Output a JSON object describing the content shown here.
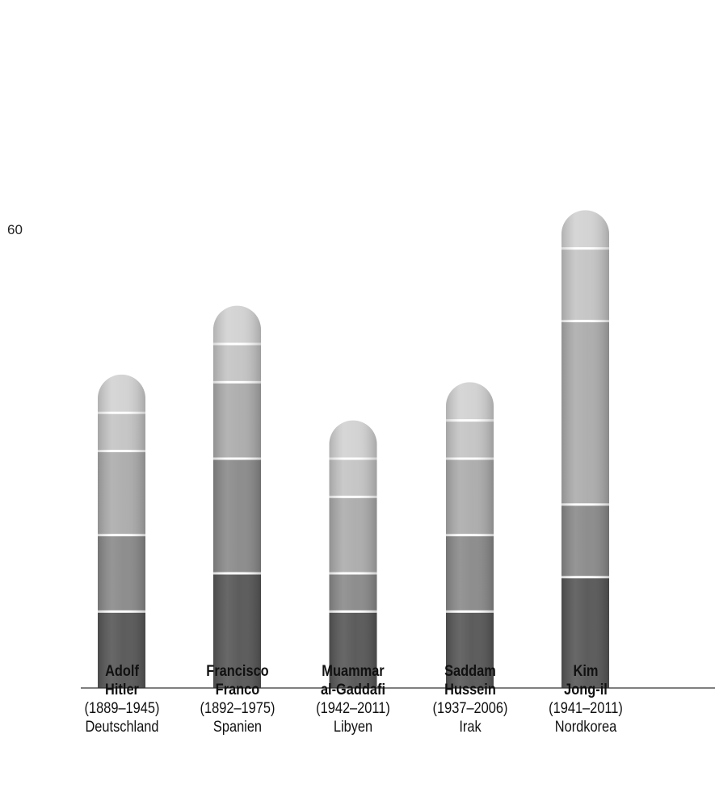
{
  "chart_data": {
    "type": "bar",
    "stacked": true,
    "y_tick_labels": [
      {
        "value": 60,
        "label": "60"
      }
    ],
    "ylim": [
      0,
      90
    ],
    "grid": false,
    "categories": [
      {
        "name_lines": [
          "Adolf",
          "Hitler"
        ],
        "years": "(1889–1945)",
        "country": "Deutschland"
      },
      {
        "name_lines": [
          "Francisco",
          "Franco"
        ],
        "years": "(1892–1975)",
        "country": "Spanien"
      },
      {
        "name_lines": [
          "Muammar",
          "al-Gaddafi"
        ],
        "years": "(1942–2011)",
        "country": "Libyen"
      },
      {
        "name_lines": [
          "Saddam",
          "Hussein"
        ],
        "years": "(1937–2006)",
        "country": "Irak"
      },
      {
        "name_lines": [
          "Kim",
          "Jong-il"
        ],
        "years": "(1941–2011)",
        "country": "Nordkorea"
      }
    ],
    "segment_colors": [
      "#575757",
      "#8a8a8a",
      "#acacac",
      "#c4c4c4",
      "#d2d2d2"
    ],
    "segments": [
      [
        10,
        15,
        10,
        10,
        14.5
      ],
      [
        10,
        15,
        5,
        10,
        9.5
      ],
      [
        11,
        10,
        10,
        10,
        24
      ],
      [
        5,
        5,
        5,
        5,
        9.5
      ],
      [
        5,
        5,
        5,
        5,
        5
      ]
    ]
  }
}
